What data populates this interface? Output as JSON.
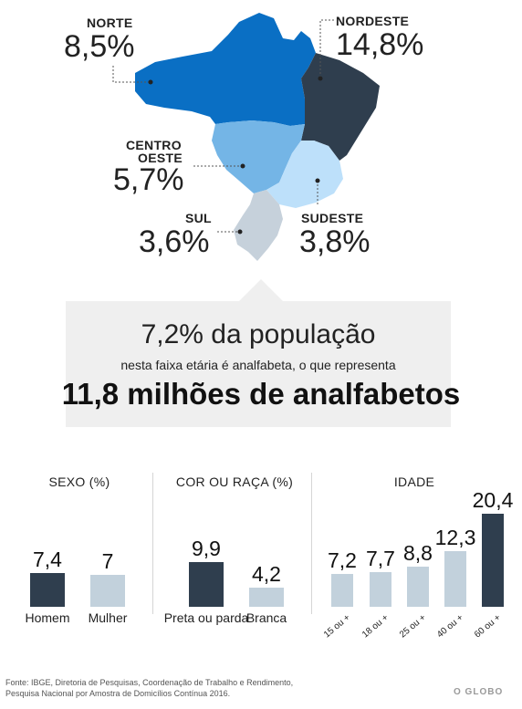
{
  "colors": {
    "norte": "#0a6fc4",
    "nordeste": "#2f3e4e",
    "centro_oeste": "#74b5e6",
    "sudeste": "#bde0fa",
    "sul": "#c6d1db",
    "bar_dark": "#2f3e4e",
    "bar_light": "#c2d1dc"
  },
  "regions": {
    "norte": {
      "name": "NORTE",
      "value": "8,5%"
    },
    "nordeste": {
      "name": "NORDESTE",
      "value": "14,8%"
    },
    "centro_oeste": {
      "name_line1": "CENTRO",
      "name_line2": "OESTE",
      "value": "5,7%"
    },
    "sul": {
      "name": "SUL",
      "value": "3,6%"
    },
    "sudeste": {
      "name": "SUDESTE",
      "value": "3,8%"
    }
  },
  "callout": {
    "line1": "7,2% da população",
    "line2": "nesta faixa etária é analfabeta, o que representa",
    "line3": "11,8 milhões de analfabetos"
  },
  "chart_data": [
    {
      "type": "bar",
      "title": "SEXO (%)",
      "categories": [
        "Homem",
        "Mulher"
      ],
      "values": [
        7.4,
        7
      ],
      "labels": [
        "7,4",
        "7"
      ],
      "highlight": [
        true,
        false
      ]
    },
    {
      "type": "bar",
      "title": "COR OU RAÇA (%)",
      "categories": [
        "Preta ou parda",
        "Branca"
      ],
      "values": [
        9.9,
        4.2
      ],
      "labels": [
        "9,9",
        "4,2"
      ],
      "highlight": [
        true,
        false
      ]
    },
    {
      "type": "bar",
      "title": "IDADE",
      "categories": [
        "15 ou +",
        "18 ou +",
        "25 ou +",
        "40 ou +",
        "60 ou +"
      ],
      "values": [
        7.2,
        7.7,
        8.8,
        12.3,
        20.4
      ],
      "labels": [
        "7,2",
        "7,7",
        "8,8",
        "12,3",
        "20,4"
      ],
      "highlight": [
        false,
        false,
        false,
        false,
        true
      ]
    }
  ],
  "source_line1": "Fonte: IBGE, Diretoria de Pesquisas, Coordenação de Trabalho e Rendimento,",
  "source_line2": "Pesquisa Nacional por Amostra de Domicílios Contínua 2016.",
  "brand": "O GLOBO"
}
